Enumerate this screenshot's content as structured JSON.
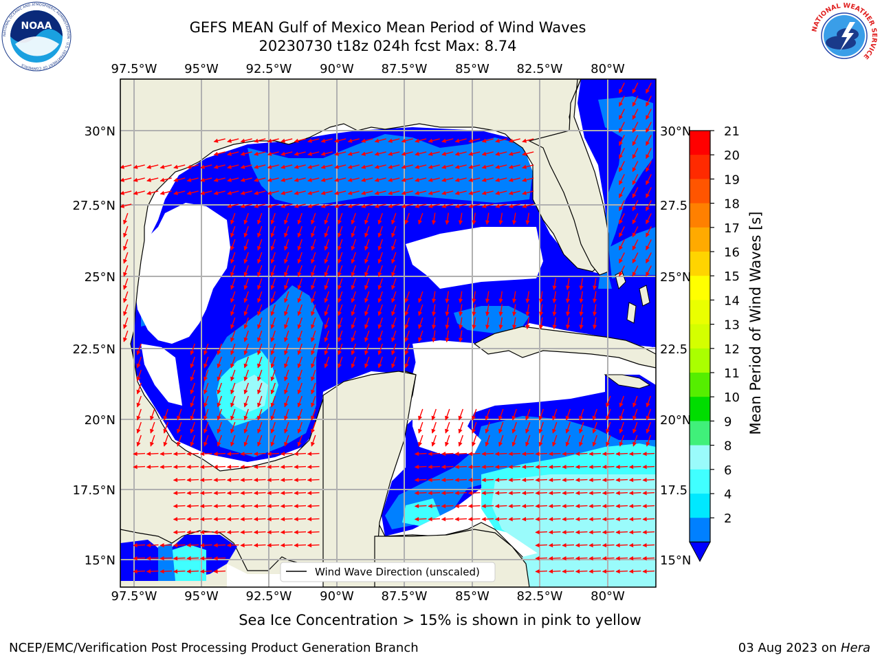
{
  "title_line1": "GEFS MEAN Gulf of Mexico Mean Period of Wind Waves",
  "title_line2": "20230730 t18z 024h fcst   Max: 8.74",
  "top_lon_labels": [
    "97.5°W",
    "95°W",
    "92.5°W",
    "90°W",
    "87.5°W",
    "85°W",
    "82.5°W",
    "80°W"
  ],
  "bottom_lon_labels": [
    "97.5°W",
    "95°W",
    "92.5°W",
    "90°W",
    "87.5°W",
    "85°W",
    "82.5°W",
    "80°W"
  ],
  "left_lat_labels": [
    "30°N",
    "27.5°N",
    "25°N",
    "22.5°N",
    "20°N",
    "17.5°N",
    "15°N"
  ],
  "right_lat_labels": [
    "30°N",
    "27.5",
    "25°N",
    "22.5",
    "20°N",
    "17.5",
    "15°N"
  ],
  "colorbar": {
    "label": "Mean Period of Wind Waves [s]",
    "ticks": [
      "21",
      "20",
      "19",
      "18",
      "17",
      "16",
      "15",
      "14",
      "13",
      "12",
      "11",
      "10",
      "9",
      "8",
      "6",
      "4",
      "2"
    ],
    "colors": [
      "#ff0000",
      "#ff2a00",
      "#ff5500",
      "#ff8000",
      "#ffaa00",
      "#ffd400",
      "#ffff00",
      "#eaff00",
      "#d4ff00",
      "#aaff00",
      "#55ee00",
      "#00dd00",
      "#40f07a",
      "#9afbfb",
      "#40ffff",
      "#00e8ff",
      "#0080ff"
    ],
    "extend_color": "#0000ff"
  },
  "legend_label": "Wind Wave Direction (unscaled)",
  "colors": {
    "land": "#eeeedc",
    "deep": "#0000ff",
    "mid": "#0080ff",
    "light": "#40ffff",
    "pale": "#9afbfb",
    "arrow": "#ff0000",
    "grid": "#b0b0b0"
  },
  "footnote": "Sea Ice Concentration > 15% is shown in pink to yellow",
  "credit": "NCEP/EMC/Verification Post Processing Product Generation Branch",
  "date_text": "03 Aug 2023 on ",
  "date_host": "Hera",
  "logos": {
    "noaa_text": "NOAA",
    "noaa_ring": "NATIONAL OCEANIC AND ATMOSPHERIC ADMINISTRATION · U.S. DEPARTMENT OF COMMERCE",
    "nws_ring": "NATIONAL WEATHER SERVICE"
  }
}
